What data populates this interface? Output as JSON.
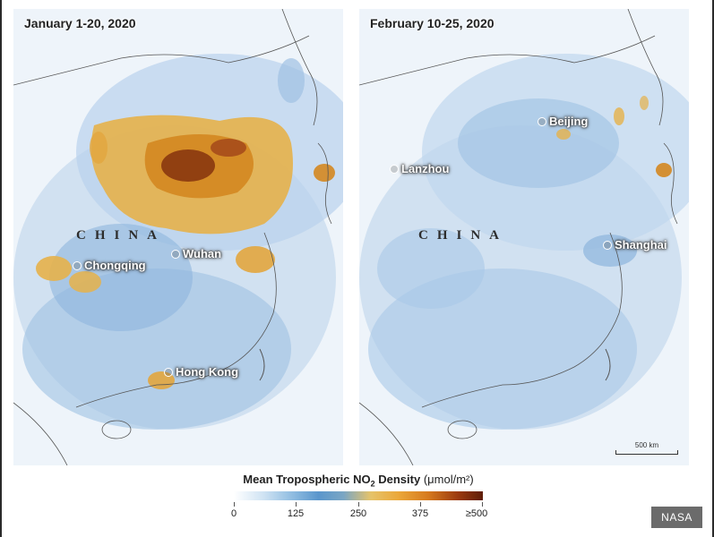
{
  "panels": [
    {
      "title": "January 1-20, 2020",
      "country": "CHINA",
      "cities": [
        "Chongqing",
        "Wuhan",
        "Hong Kong"
      ]
    },
    {
      "title": "February 10-25, 2020",
      "country": "CHINA",
      "cities": [
        "Lanzhou",
        "Beijing",
        "Shanghai"
      ],
      "scale": "500 km"
    }
  ],
  "legend": {
    "title": "Mean Tropospheric NO",
    "subscript": "2",
    "title_rest": " Density",
    "unit": "(μmol/m²)",
    "ticks": [
      "0",
      "125",
      "250",
      "375",
      "≥500"
    ],
    "colors": [
      "#ffffff",
      "#8dbbe0",
      "#5a96cc",
      "#eba83a",
      "#d67a1e",
      "#5e1d08"
    ]
  },
  "credit": "NASA"
}
